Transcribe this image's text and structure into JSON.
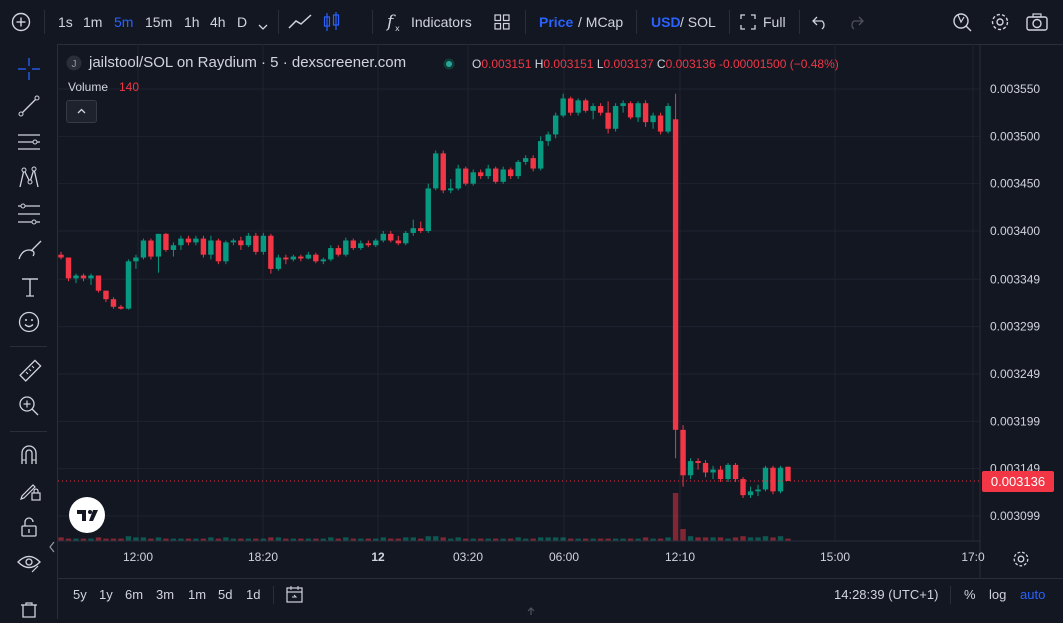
{
  "toolbar": {
    "intervals": [
      "1s",
      "1m",
      "5m",
      "15m",
      "1h",
      "4h",
      "D"
    ],
    "active_interval": "5m",
    "indicators_label": "Indicators",
    "price_label": "Price",
    "price_sep": "/ MCap",
    "usd_label": "USD",
    "sol_sep": "/ SOL",
    "full_label": "Full"
  },
  "legend": {
    "symbol": "jailstool/SOL on Raydium · 5 · dexscreener.com",
    "avatar_letter": "J",
    "o_key": "O",
    "o_val": "0.003151",
    "h_key": "H",
    "h_val": "0.003151",
    "l_key": "L",
    "l_val": "0.003137",
    "c_key": "C",
    "c_val": "0.003136",
    "change": "-0.00001500 (−0.48%)",
    "volume_label": "Volume",
    "volume_value": "140"
  },
  "last_price": "0.003136",
  "bottom": {
    "ranges": [
      "5y",
      "1y",
      "6m",
      "3m",
      "1m",
      "5d",
      "1d"
    ],
    "time": "14:28:39 (UTC+1)",
    "percent": "%",
    "log": "log",
    "auto": "auto"
  },
  "colors": {
    "up": "#089981",
    "down": "#f23645",
    "bg": "#131722",
    "grid": "#1f2330",
    "accent": "#2962ff"
  },
  "chart_data": {
    "type": "candlestick",
    "y_ticks": [
      "0.003550",
      "0.003500",
      "0.003450",
      "0.003400",
      "0.003349",
      "0.003299",
      "0.003249",
      "0.003199",
      "0.003149",
      "0.003099"
    ],
    "y_tick_values": [
      0.00355,
      0.0035,
      0.00345,
      0.0034,
      0.003349,
      0.003299,
      0.003249,
      0.003199,
      0.003149,
      0.003099
    ],
    "x_ticks": [
      "12:00",
      "18:20",
      "12",
      "03:20",
      "06:00",
      "12:10",
      "15:00",
      "17:0"
    ],
    "ylim": [
      0.00308,
      0.00357
    ],
    "last_price": 0.003136,
    "ohlc": [
      [
        0.003375,
        0.003378,
        0.00337,
        0.003372
      ],
      [
        0.003372,
        0.003372,
        0.003347,
        0.00335
      ],
      [
        0.00335,
        0.003355,
        0.003345,
        0.003353
      ],
      [
        0.003353,
        0.003355,
        0.003347,
        0.00335
      ],
      [
        0.00335,
        0.003355,
        0.003343,
        0.003353
      ],
      [
        0.003353,
        0.003353,
        0.003335,
        0.003337
      ],
      [
        0.003337,
        0.003337,
        0.003325,
        0.003328
      ],
      [
        0.003328,
        0.00333,
        0.003318,
        0.00332
      ],
      [
        0.00332,
        0.003322,
        0.003317,
        0.003318
      ],
      [
        0.003318,
        0.00337,
        0.003317,
        0.003368
      ],
      [
        0.003368,
        0.003375,
        0.00336,
        0.003372
      ],
      [
        0.003372,
        0.003392,
        0.00337,
        0.00339
      ],
      [
        0.00339,
        0.003392,
        0.00337,
        0.003373
      ],
      [
        0.003373,
        0.003397,
        0.003356,
        0.003397
      ],
      [
        0.003397,
        0.003398,
        0.003378,
        0.00338
      ],
      [
        0.00338,
        0.003388,
        0.003373,
        0.003385
      ],
      [
        0.003385,
        0.003395,
        0.00338,
        0.003392
      ],
      [
        0.003392,
        0.003395,
        0.003385,
        0.003388
      ],
      [
        0.003388,
        0.003395,
        0.003385,
        0.003392
      ],
      [
        0.003392,
        0.003395,
        0.003372,
        0.003375
      ],
      [
        0.003375,
        0.003395,
        0.00337,
        0.00339
      ],
      [
        0.00339,
        0.003392,
        0.003365,
        0.003368
      ],
      [
        0.003368,
        0.00339,
        0.003365,
        0.003388
      ],
      [
        0.003388,
        0.003392,
        0.003385,
        0.00339
      ],
      [
        0.00339,
        0.003394,
        0.00338,
        0.003385
      ],
      [
        0.003385,
        0.003398,
        0.003383,
        0.003395
      ],
      [
        0.003395,
        0.003398,
        0.003375,
        0.003378
      ],
      [
        0.003378,
        0.003398,
        0.003375,
        0.003395
      ],
      [
        0.003395,
        0.003397,
        0.003355,
        0.00336
      ],
      [
        0.00336,
        0.003375,
        0.003358,
        0.003372
      ],
      [
        0.003372,
        0.003375,
        0.003365,
        0.00337
      ],
      [
        0.00337,
        0.003375,
        0.003368,
        0.003373
      ],
      [
        0.003373,
        0.003375,
        0.003368,
        0.003371
      ],
      [
        0.003371,
        0.003378,
        0.00337,
        0.003375
      ],
      [
        0.003375,
        0.003377,
        0.003366,
        0.003368
      ],
      [
        0.003368,
        0.003372,
        0.003365,
        0.00337
      ],
      [
        0.00337,
        0.003385,
        0.003368,
        0.003382
      ],
      [
        0.003382,
        0.003385,
        0.003373,
        0.003375
      ],
      [
        0.003375,
        0.003393,
        0.003373,
        0.00339
      ],
      [
        0.00339,
        0.003392,
        0.00338,
        0.003382
      ],
      [
        0.003382,
        0.00339,
        0.00338,
        0.003387
      ],
      [
        0.003387,
        0.00339,
        0.003383,
        0.003385
      ],
      [
        0.003385,
        0.003392,
        0.003383,
        0.00339
      ],
      [
        0.00339,
        0.0034,
        0.003388,
        0.003397
      ],
      [
        0.003397,
        0.0034,
        0.003388,
        0.00339
      ],
      [
        0.00339,
        0.003395,
        0.003385,
        0.003387
      ],
      [
        0.003387,
        0.0034,
        0.003385,
        0.003398
      ],
      [
        0.003398,
        0.003412,
        0.003395,
        0.003403
      ],
      [
        0.003403,
        0.00341,
        0.003398,
        0.0034
      ],
      [
        0.0034,
        0.00345,
        0.003398,
        0.003445
      ],
      [
        0.003445,
        0.003485,
        0.003443,
        0.003482
      ],
      [
        0.003482,
        0.003485,
        0.00344,
        0.003443
      ],
      [
        0.003443,
        0.003455,
        0.00344,
        0.003445
      ],
      [
        0.003445,
        0.00347,
        0.003443,
        0.003466
      ],
      [
        0.003466,
        0.003468,
        0.003448,
        0.00345
      ],
      [
        0.00345,
        0.003465,
        0.003448,
        0.003462
      ],
      [
        0.003462,
        0.003465,
        0.003455,
        0.003458
      ],
      [
        0.003458,
        0.00347,
        0.003455,
        0.003466
      ],
      [
        0.003466,
        0.003468,
        0.00345,
        0.003452
      ],
      [
        0.003452,
        0.003468,
        0.00345,
        0.003465
      ],
      [
        0.003465,
        0.003467,
        0.003455,
        0.003458
      ],
      [
        0.003458,
        0.003475,
        0.003455,
        0.003473
      ],
      [
        0.003473,
        0.00348,
        0.00347,
        0.003477
      ],
      [
        0.003477,
        0.00348,
        0.003463,
        0.003466
      ],
      [
        0.003466,
        0.0035,
        0.003464,
        0.003495
      ],
      [
        0.003495,
        0.003505,
        0.00349,
        0.003502
      ],
      [
        0.003502,
        0.003525,
        0.003498,
        0.003522
      ],
      [
        0.003522,
        0.003545,
        0.00352,
        0.00354
      ],
      [
        0.00354,
        0.003542,
        0.003522,
        0.003525
      ],
      [
        0.003525,
        0.00354,
        0.003522,
        0.003538
      ],
      [
        0.003538,
        0.00354,
        0.003525,
        0.003527
      ],
      [
        0.003527,
        0.003535,
        0.003518,
        0.003532
      ],
      [
        0.003532,
        0.003535,
        0.003522,
        0.003525
      ],
      [
        0.003525,
        0.003537,
        0.003503,
        0.003508
      ],
      [
        0.003508,
        0.003535,
        0.003505,
        0.003532
      ],
      [
        0.003532,
        0.003538,
        0.003525,
        0.003535
      ],
      [
        0.003535,
        0.003537,
        0.003518,
        0.00352
      ],
      [
        0.00352,
        0.003537,
        0.003515,
        0.003535
      ],
      [
        0.003535,
        0.003538,
        0.00351,
        0.003515
      ],
      [
        0.003515,
        0.003525,
        0.003508,
        0.003522
      ],
      [
        0.003522,
        0.003525,
        0.003502,
        0.003505
      ],
      [
        0.003505,
        0.003535,
        0.003503,
        0.003532
      ],
      [
        0.003518,
        0.003545,
        0.00316,
        0.00319
      ],
      [
        0.00319,
        0.003195,
        0.00313,
        0.003142
      ],
      [
        0.003142,
        0.00316,
        0.003138,
        0.003157
      ],
      [
        0.003157,
        0.00316,
        0.003148,
        0.003155
      ],
      [
        0.003155,
        0.003158,
        0.00314,
        0.003145
      ],
      [
        0.003145,
        0.003152,
        0.003138,
        0.003148
      ],
      [
        0.003148,
        0.003152,
        0.003135,
        0.003138
      ],
      [
        0.003138,
        0.003155,
        0.003135,
        0.003153
      ],
      [
        0.003153,
        0.003155,
        0.003135,
        0.003138
      ],
      [
        0.003138,
        0.00314,
        0.003118,
        0.003121
      ],
      [
        0.003121,
        0.00313,
        0.003118,
        0.003125
      ],
      [
        0.003125,
        0.003132,
        0.00312,
        0.003127
      ],
      [
        0.003127,
        0.003152,
        0.003125,
        0.00315
      ],
      [
        0.00315,
        0.003152,
        0.003122,
        0.003125
      ],
      [
        0.003125,
        0.003152,
        0.003123,
        0.00315
      ],
      [
        0.003151,
        0.003151,
        0.003137,
        0.003136
      ]
    ],
    "volume": [
      3,
      2,
      2,
      2,
      2,
      3,
      2,
      2,
      2,
      4,
      3,
      3,
      2,
      3,
      2,
      2,
      2,
      2,
      2,
      2,
      3,
      2,
      3,
      2,
      2,
      2,
      2,
      2,
      3,
      3,
      2,
      2,
      2,
      2,
      2,
      2,
      3,
      2,
      3,
      2,
      2,
      2,
      2,
      3,
      2,
      2,
      3,
      3,
      2,
      4,
      4,
      3,
      2,
      3,
      2,
      2,
      2,
      2,
      2,
      2,
      2,
      3,
      2,
      2,
      3,
      3,
      3,
      3,
      2,
      2,
      2,
      2,
      2,
      2,
      2,
      2,
      2,
      2,
      3,
      2,
      2,
      3,
      40,
      10,
      4,
      3,
      3,
      3,
      3,
      2,
      3,
      4,
      3,
      3,
      4,
      3,
      4,
      2
    ]
  }
}
